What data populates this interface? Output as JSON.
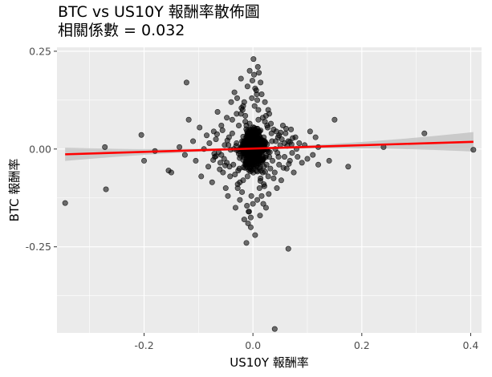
{
  "chart_data": {
    "type": "scatter",
    "title": "BTC vs US10Y 報酬率散佈圖",
    "subtitle": "相關係數 = 0.032",
    "xlabel": "US10Y 報酬率",
    "ylabel": "BTC 報酬率",
    "xlim": [
      -0.36,
      0.42
    ],
    "ylim": [
      -0.47,
      0.26
    ],
    "x_ticks": [
      -0.2,
      0.0,
      0.2,
      0.4
    ],
    "x_tick_labels": [
      "-0.2",
      "0.0",
      "0.2",
      "0.4"
    ],
    "y_ticks": [
      -0.25,
      0.0,
      0.25
    ],
    "y_tick_labels": [
      "-0.25",
      "0.00",
      "0.25"
    ],
    "grid": true,
    "colors": {
      "panel": "#ebebeb",
      "grid": "#ffffff",
      "point": "#000000",
      "line": "#ff0000",
      "band": "#bfbfbf"
    },
    "regression": {
      "x": [
        -0.345,
        0.405
      ],
      "y": [
        -0.0135,
        0.0185
      ],
      "band_halfwidth_ends": [
        0.017,
        0.025
      ],
      "band_halfwidth_mid": 0.003
    },
    "points": [
      [
        -0.345,
        -0.138
      ],
      [
        -0.27,
        -0.103
      ],
      [
        -0.272,
        0.005
      ],
      [
        -0.205,
        0.036
      ],
      [
        -0.2,
        -0.03
      ],
      [
        -0.18,
        -0.005
      ],
      [
        -0.155,
        -0.055
      ],
      [
        -0.15,
        -0.06
      ],
      [
        -0.135,
        0.005
      ],
      [
        -0.125,
        -0.015
      ],
      [
        -0.122,
        0.17
      ],
      [
        -0.118,
        0.075
      ],
      [
        -0.11,
        0.02
      ],
      [
        -0.105,
        -0.03
      ],
      [
        -0.098,
        0.055
      ],
      [
        -0.095,
        -0.07
      ],
      [
        -0.09,
        0.0
      ],
      [
        -0.085,
        0.035
      ],
      [
        -0.082,
        -0.045
      ],
      [
        -0.08,
        0.015
      ],
      [
        -0.075,
        -0.085
      ],
      [
        -0.072,
        0.045
      ],
      [
        -0.07,
        -0.02
      ],
      [
        -0.068,
        0.025
      ],
      [
        -0.065,
        0.095
      ],
      [
        -0.06,
        -0.035
      ],
      [
        -0.058,
        0.06
      ],
      [
        -0.055,
        -0.06
      ],
      [
        -0.052,
        0.01
      ],
      [
        -0.05,
        -0.1
      ],
      [
        -0.048,
        0.08
      ],
      [
        -0.046,
        -0.12
      ],
      [
        -0.044,
        0.03
      ],
      [
        -0.042,
        -0.07
      ],
      [
        -0.04,
        0.12
      ],
      [
        -0.038,
        0.04
      ],
      [
        -0.036,
        -0.04
      ],
      [
        -0.034,
        0.145
      ],
      [
        -0.032,
        -0.15
      ],
      [
        -0.03,
        0.09
      ],
      [
        -0.028,
        -0.09
      ],
      [
        -0.026,
        0.06
      ],
      [
        -0.024,
        -0.13
      ],
      [
        -0.022,
        0.18
      ],
      [
        -0.02,
        -0.11
      ],
      [
        -0.018,
        0.11
      ],
      [
        -0.016,
        -0.18
      ],
      [
        -0.014,
        0.07
      ],
      [
        -0.012,
        -0.24
      ],
      [
        -0.01,
        0.16
      ],
      [
        -0.008,
        -0.16
      ],
      [
        -0.006,
        0.2
      ],
      [
        -0.004,
        -0.2
      ],
      [
        -0.002,
        0.13
      ],
      [
        0.0,
        -0.14
      ],
      [
        0.002,
        0.19
      ],
      [
        0.004,
        -0.22
      ],
      [
        0.006,
        0.15
      ],
      [
        0.008,
        -0.13
      ],
      [
        0.01,
        0.1
      ],
      [
        0.012,
        -0.1
      ],
      [
        0.014,
        0.17
      ],
      [
        0.016,
        -0.12
      ],
      [
        0.018,
        0.08
      ],
      [
        0.02,
        -0.09
      ],
      [
        0.022,
        0.12
      ],
      [
        0.024,
        -0.15
      ],
      [
        0.026,
        0.06
      ],
      [
        0.028,
        -0.07
      ],
      [
        0.03,
        0.09
      ],
      [
        0.032,
        -0.05
      ],
      [
        0.034,
        0.04
      ],
      [
        0.036,
        -0.03
      ],
      [
        0.038,
        0.05
      ],
      [
        0.04,
        -0.06
      ],
      [
        0.042,
        0.02
      ],
      [
        0.044,
        -0.1
      ],
      [
        0.046,
        0.03
      ],
      [
        0.048,
        -0.04
      ],
      [
        0.05,
        0.01
      ],
      [
        0.052,
        -0.08
      ],
      [
        0.055,
        0.06
      ],
      [
        0.058,
        -0.02
      ],
      [
        0.06,
        0.04
      ],
      [
        0.062,
        -0.05
      ],
      [
        0.065,
        0.02
      ],
      [
        0.068,
        -0.03
      ],
      [
        0.07,
        0.05
      ],
      [
        0.072,
        -0.01
      ],
      [
        0.075,
        -0.06
      ],
      [
        0.078,
        0.03
      ],
      [
        0.08,
        0.0
      ],
      [
        0.082,
        -0.02
      ],
      [
        0.085,
        0.015
      ],
      [
        0.09,
        -0.035
      ],
      [
        0.095,
        0.01
      ],
      [
        0.1,
        -0.025
      ],
      [
        0.105,
        0.045
      ],
      [
        0.11,
        -0.015
      ],
      [
        0.115,
        0.03
      ],
      [
        0.12,
        -0.04
      ],
      [
        0.14,
        -0.03
      ],
      [
        0.15,
        0.075
      ],
      [
        0.175,
        -0.045
      ],
      [
        0.24,
        0.005
      ],
      [
        0.315,
        0.04
      ],
      [
        0.405,
        -0.002
      ],
      [
        0.04,
        -0.46
      ],
      [
        0.065,
        -0.255
      ],
      [
        0.12,
        0.005
      ],
      [
        0.01,
        0.075
      ],
      [
        -0.01,
        -0.07
      ],
      [
        0.0,
        0.05
      ],
      [
        0.02,
        0.03
      ],
      [
        -0.02,
        0.02
      ],
      [
        0.005,
        -0.03
      ],
      [
        -0.015,
        -0.015
      ],
      [
        0.03,
        -0.02
      ],
      [
        -0.03,
        0.015
      ],
      [
        0.015,
        0.025
      ],
      [
        -0.005,
        0.035
      ],
      [
        0.025,
        -0.04
      ],
      [
        -0.025,
        -0.05
      ],
      [
        0.035,
        0.02
      ],
      [
        -0.035,
        0.0
      ],
      [
        0.045,
        -0.01
      ],
      [
        -0.045,
        0.01
      ],
      [
        0.0,
        0.0
      ],
      [
        0.01,
        -0.005
      ],
      [
        -0.01,
        0.005
      ],
      [
        0.005,
        0.015
      ],
      [
        -0.008,
        -0.025
      ],
      [
        0.012,
        0.045
      ],
      [
        -0.012,
        0.06
      ],
      [
        0.018,
        -0.06
      ],
      [
        -0.018,
        -0.08
      ],
      [
        0.022,
        0.07
      ],
      [
        -0.022,
        0.09
      ],
      [
        0.028,
        0.1
      ],
      [
        -0.028,
        -0.1
      ],
      [
        0.003,
        0.11
      ],
      [
        -0.003,
        -0.12
      ],
      [
        0.007,
        0.14
      ],
      [
        -0.007,
        -0.16
      ],
      [
        0.009,
        0.21
      ],
      [
        -0.009,
        -0.19
      ],
      [
        0.001,
        0.23
      ],
      [
        0.011,
        0.195
      ],
      [
        -0.001,
        0.175
      ],
      [
        0.013,
        -0.17
      ],
      [
        0.016,
        0.14
      ],
      [
        -0.016,
        0.12
      ],
      [
        0.019,
        -0.14
      ],
      [
        -0.019,
        0.1
      ],
      [
        0.024,
        0.085
      ],
      [
        -0.024,
        -0.085
      ],
      [
        0.027,
        0.055
      ],
      [
        -0.027,
        -0.055
      ],
      [
        0.033,
        0.065
      ],
      [
        -0.033,
        -0.065
      ],
      [
        0.038,
        -0.075
      ],
      [
        -0.038,
        0.075
      ],
      [
        0.043,
        0.045
      ],
      [
        -0.043,
        -0.045
      ],
      [
        0.048,
        0.035
      ],
      [
        -0.048,
        -0.035
      ],
      [
        0.053,
        0.025
      ],
      [
        -0.053,
        -0.025
      ],
      [
        0.058,
        0.015
      ],
      [
        -0.058,
        -0.015
      ],
      [
        0.063,
        0.008
      ],
      [
        -0.063,
        -0.008
      ],
      [
        0.068,
        0.018
      ],
      [
        -0.068,
        -0.018
      ],
      [
        0.073,
        0.028
      ],
      [
        -0.073,
        -0.028
      ],
      [
        0.002,
        -0.045
      ],
      [
        -0.002,
        0.045
      ],
      [
        0.006,
        -0.055
      ],
      [
        -0.006,
        0.065
      ],
      [
        0.014,
        -0.075
      ],
      [
        -0.014,
        0.085
      ],
      [
        0.021,
        -0.095
      ],
      [
        -0.021,
        0.105
      ],
      [
        0.029,
        -0.115
      ],
      [
        -0.029,
        0.13
      ],
      [
        0.004,
        0.155
      ],
      [
        -0.004,
        -0.175
      ],
      [
        0.008,
        0.125
      ],
      [
        -0.011,
        -0.145
      ],
      [
        0.017,
        0.005
      ],
      [
        -0.017,
        -0.005
      ],
      [
        0.026,
        0.012
      ],
      [
        -0.026,
        -0.012
      ],
      [
        0.031,
        -0.008
      ],
      [
        -0.031,
        0.008
      ],
      [
        0.041,
        0.0
      ],
      [
        -0.041,
        -0.002
      ],
      [
        0.047,
        -0.02
      ],
      [
        -0.047,
        0.022
      ],
      [
        0.051,
        0.042
      ],
      [
        -0.051,
        -0.042
      ],
      [
        0.056,
        -0.048
      ],
      [
        -0.056,
        0.048
      ],
      [
        0.061,
        0.052
      ],
      [
        -0.061,
        -0.052
      ],
      [
        0.066,
        -0.038
      ],
      [
        -0.066,
        0.038
      ],
      [
        0.071,
        0.012
      ],
      [
        -0.071,
        -0.012
      ]
    ]
  }
}
